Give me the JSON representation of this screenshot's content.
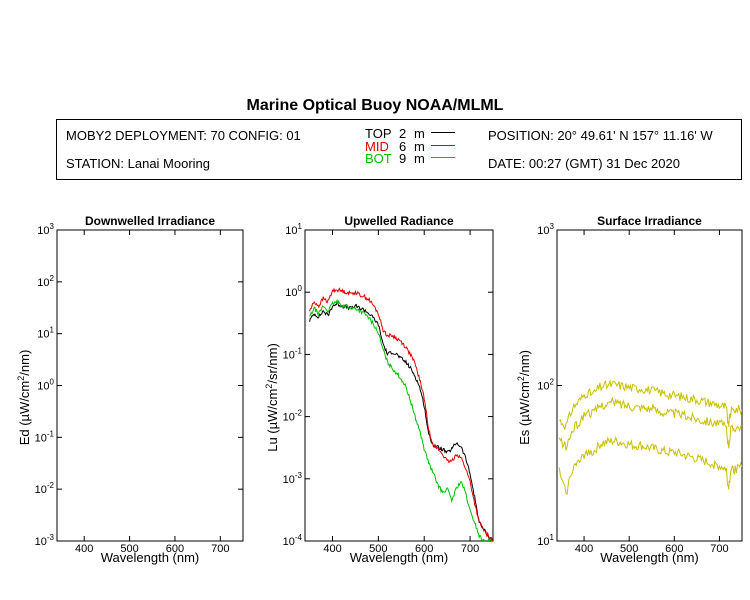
{
  "title": "Marine Optical Buoy NOAA/MLML",
  "header": {
    "deployment": "MOBY2 DEPLOYMENT: 70 CONFIG: 01",
    "station": "STATION: Lanai Mooring",
    "position": "POSITION: 20° 49.61' N   157° 11.16' W",
    "date": "DATE: 00:27 (GMT) 31 Dec 2020",
    "legend": [
      {
        "name": "TOP",
        "depth": "2",
        "unit": "m",
        "color": "#000000"
      },
      {
        "name": "MID",
        "depth": "6",
        "unit": "m",
        "color": "#e00000"
      },
      {
        "name": "BOT",
        "depth": "9",
        "unit": "m",
        "color": "#00c000"
      }
    ]
  },
  "chart_data": [
    {
      "type": "line",
      "title": "Downwelled Irradiance",
      "xlabel": "Wavelength (nm)",
      "ylabel": "Ed (µW/cm²/nm)",
      "xlim": [
        340,
        750
      ],
      "ylim": [
        0.001,
        1000
      ],
      "yscale": "log",
      "x_ticks": [
        400,
        500,
        600,
        700
      ],
      "y_ticks": [
        "10^-3",
        "10^-2",
        "10^-1",
        "10^0",
        "10^1",
        "10^2",
        "10^3"
      ],
      "series": []
    },
    {
      "type": "line",
      "title": "Upwelled Radiance",
      "xlabel": "Wavelength (nm)",
      "ylabel": "Lu (µW/cm²/sr/nm)",
      "xlim": [
        340,
        750
      ],
      "ylim": [
        0.0001,
        10
      ],
      "yscale": "log",
      "x_ticks": [
        400,
        500,
        600,
        700
      ],
      "y_ticks": [
        "10^-4",
        "10^-3",
        "10^-2",
        "10^-1",
        "10^0",
        "10^1"
      ],
      "series": [
        {
          "color": "#000000",
          "x": [
            350,
            360,
            370,
            380,
            390,
            400,
            410,
            420,
            430,
            440,
            450,
            460,
            470,
            480,
            490,
            500,
            510,
            520,
            530,
            540,
            550,
            560,
            570,
            580,
            590,
            600,
            610,
            620,
            630,
            640,
            650,
            660,
            670,
            680,
            690,
            700,
            710,
            720,
            730,
            740,
            750
          ],
          "y": [
            0.35,
            0.45,
            0.4,
            0.5,
            0.42,
            0.6,
            0.65,
            0.6,
            0.58,
            0.55,
            0.6,
            0.55,
            0.52,
            0.45,
            0.38,
            0.3,
            0.15,
            0.1,
            0.11,
            0.1,
            0.085,
            0.075,
            0.06,
            0.045,
            0.03,
            0.015,
            0.005,
            0.0035,
            0.0032,
            0.003,
            0.0026,
            0.003,
            0.0038,
            0.0033,
            0.0022,
            0.0012,
            0.0005,
            0.0002,
            0.00015,
            0.00012,
            0.0001
          ]
        },
        {
          "color": "#e00000",
          "x": [
            350,
            360,
            370,
            380,
            390,
            400,
            410,
            420,
            430,
            440,
            450,
            460,
            470,
            480,
            490,
            500,
            510,
            520,
            530,
            540,
            550,
            560,
            570,
            580,
            590,
            600,
            610,
            620,
            630,
            640,
            650,
            660,
            670,
            680,
            690,
            700,
            710,
            720,
            730,
            740,
            750
          ],
          "y": [
            0.5,
            0.7,
            0.6,
            0.8,
            0.7,
            1.05,
            1.1,
            1.05,
            1.0,
            0.95,
            1.0,
            0.9,
            0.85,
            0.75,
            0.6,
            0.45,
            0.25,
            0.2,
            0.2,
            0.18,
            0.16,
            0.13,
            0.1,
            0.07,
            0.04,
            0.02,
            0.006,
            0.0035,
            0.003,
            0.0025,
            0.0019,
            0.0019,
            0.0025,
            0.0022,
            0.0015,
            0.0009,
            0.0004,
            0.0002,
            0.00015,
            0.00012,
            0.0001
          ]
        },
        {
          "color": "#00c000",
          "x": [
            350,
            360,
            370,
            380,
            390,
            400,
            410,
            420,
            430,
            440,
            450,
            460,
            470,
            480,
            490,
            500,
            510,
            520,
            530,
            540,
            550,
            560,
            570,
            580,
            590,
            600,
            610,
            620,
            630,
            640,
            650,
            660,
            670,
            680,
            690,
            700,
            710,
            720,
            730,
            740,
            750
          ],
          "y": [
            0.4,
            0.55,
            0.45,
            0.6,
            0.5,
            0.65,
            0.7,
            0.62,
            0.6,
            0.55,
            0.55,
            0.5,
            0.45,
            0.38,
            0.3,
            0.22,
            0.12,
            0.075,
            0.06,
            0.05,
            0.04,
            0.03,
            0.018,
            0.01,
            0.006,
            0.003,
            0.0018,
            0.0012,
            0.0008,
            0.0006,
            0.0007,
            0.00045,
            0.0007,
            0.0009,
            0.0006,
            0.0003,
            0.0002,
            0.00012,
            0.0001,
            0.0001,
            0.0001
          ]
        }
      ]
    },
    {
      "type": "line",
      "title": "Surface Irradiance",
      "xlabel": "Wavelength (nm)",
      "ylabel": "Es (µW/cm²/nm)",
      "xlim": [
        340,
        750
      ],
      "ylim": [
        10,
        1000
      ],
      "yscale": "log",
      "x_ticks": [
        400,
        500,
        600,
        700
      ],
      "y_ticks": [
        "10^1",
        "10^2",
        "10^3"
      ],
      "series": [
        {
          "color": "#c8c000",
          "x": [
            345,
            360,
            375,
            390,
            405,
            420,
            435,
            450,
            465,
            480,
            495,
            510,
            525,
            540,
            555,
            570,
            585,
            600,
            615,
            630,
            645,
            660,
            675,
            690,
            705,
            715,
            720,
            725,
            735,
            750
          ],
          "y": [
            60,
            55,
            72,
            80,
            90,
            88,
            98,
            100,
            102,
            100,
            98,
            96,
            96,
            94,
            92,
            90,
            88,
            86,
            85,
            83,
            82,
            80,
            78,
            76,
            74,
            72,
            55,
            68,
            70,
            70
          ]
        },
        {
          "color": "#c8c000",
          "x": [
            345,
            360,
            375,
            390,
            405,
            420,
            435,
            450,
            465,
            480,
            495,
            510,
            525,
            540,
            555,
            570,
            585,
            600,
            615,
            630,
            645,
            660,
            675,
            690,
            705,
            715,
            720,
            725,
            735,
            750
          ],
          "y": [
            45,
            40,
            52,
            58,
            68,
            66,
            74,
            76,
            78,
            76,
            75,
            73,
            73,
            72,
            70,
            68,
            67,
            66,
            65,
            63,
            62,
            60,
            59,
            58,
            56,
            54,
            40,
            52,
            54,
            55
          ]
        },
        {
          "color": "#c8c000",
          "x": [
            345,
            360,
            375,
            390,
            405,
            420,
            435,
            450,
            465,
            480,
            495,
            510,
            525,
            540,
            555,
            570,
            585,
            600,
            615,
            630,
            645,
            660,
            675,
            690,
            705,
            715,
            720,
            725,
            735,
            750
          ],
          "y": [
            28,
            20,
            30,
            32,
            38,
            37,
            42,
            43,
            44,
            43,
            42,
            41,
            41,
            40,
            39,
            38,
            37,
            37,
            36,
            35,
            34,
            33,
            32,
            31,
            30,
            29,
            22,
            28,
            29,
            30
          ]
        }
      ]
    }
  ]
}
